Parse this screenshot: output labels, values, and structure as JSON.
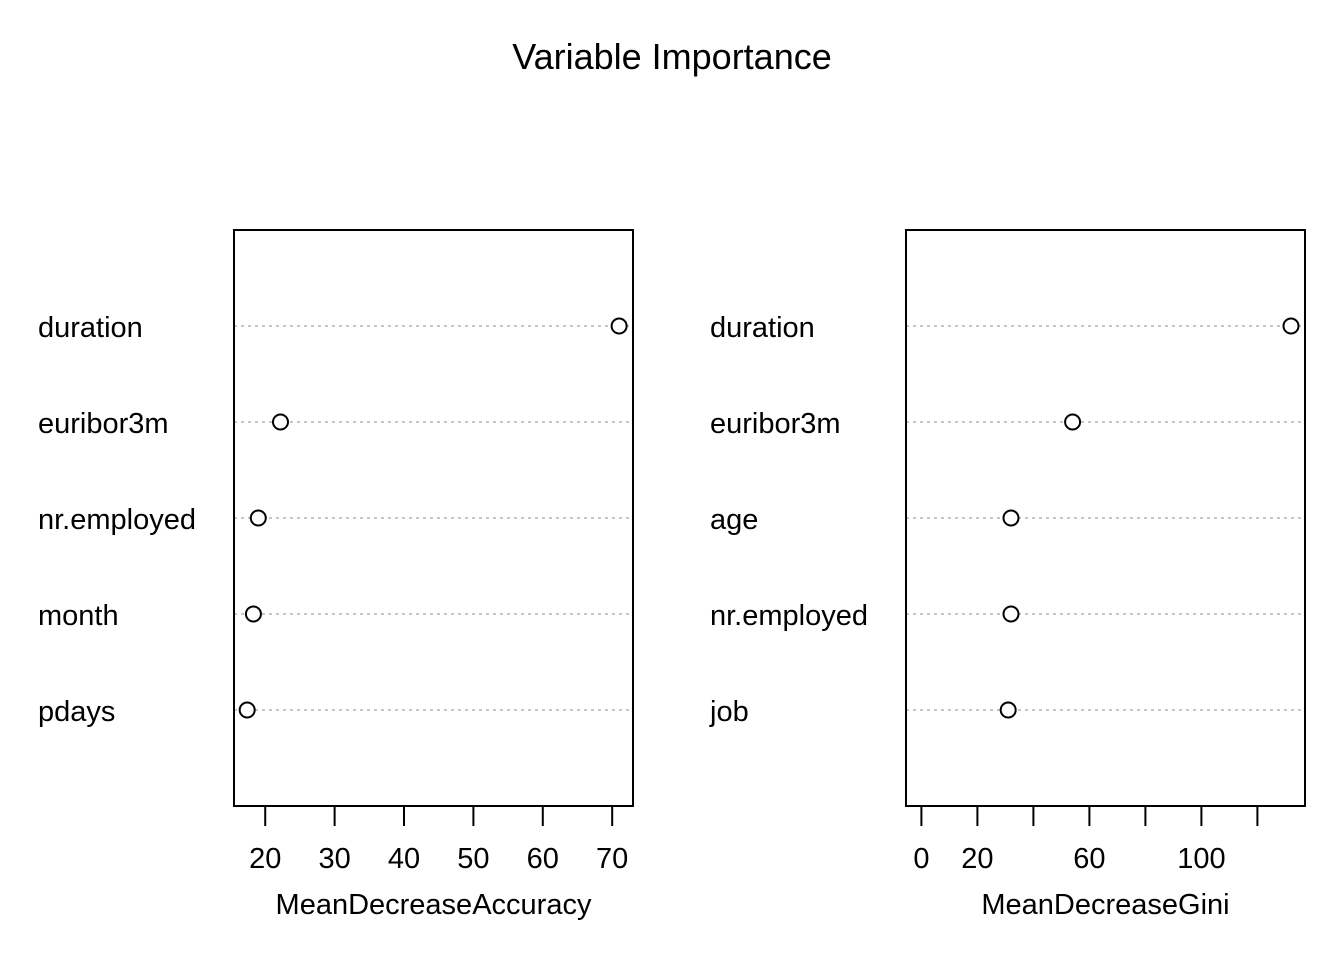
{
  "chart_data": {
    "title": "Variable Importance",
    "panels": [
      {
        "type": "scatter",
        "xlabel": "MeanDecreaseAccuracy",
        "ylabel": "",
        "xlim": [
          15.5,
          73
        ],
        "ticks": [
          20,
          30,
          40,
          50,
          60,
          70
        ],
        "tick_labels": [
          "20",
          "30",
          "40",
          "50",
          "60",
          "70"
        ],
        "categories": [
          "duration",
          "euribor3m",
          "nr.employed",
          "month",
          "pdays"
        ],
        "values": [
          71.0,
          22.2,
          19.0,
          18.3,
          17.4
        ],
        "grid": "dotted horizontal guide per category",
        "marker": "open circle"
      },
      {
        "type": "scatter",
        "xlabel": "MeanDecreaseGini",
        "ylabel": "",
        "xlim": [
          -5.5,
          137
        ],
        "ticks": [
          0,
          20,
          40,
          60,
          80,
          100,
          120
        ],
        "tick_labels": [
          "0",
          "20",
          "",
          "60",
          "",
          "100",
          ""
        ],
        "categories": [
          "duration",
          "euribor3m",
          "age",
          "nr.employed",
          "job"
        ],
        "values": [
          132,
          54,
          32,
          32,
          31
        ],
        "grid": "dotted horizontal guide per category",
        "marker": "open circle"
      }
    ]
  }
}
